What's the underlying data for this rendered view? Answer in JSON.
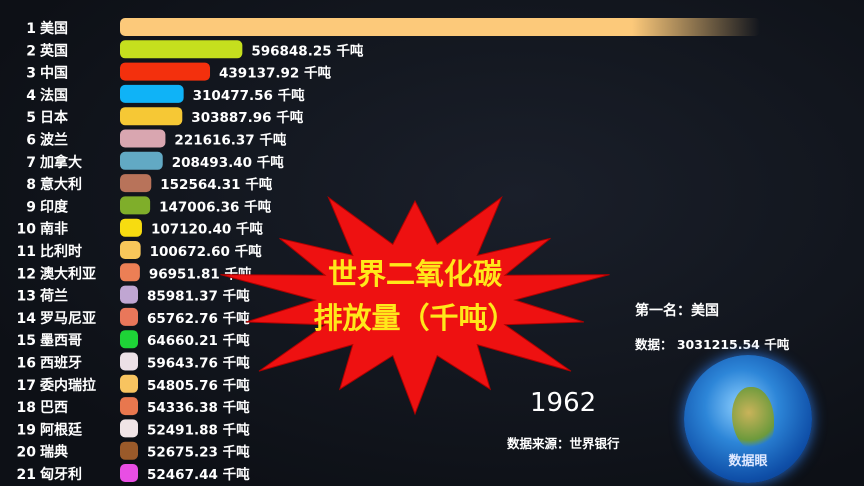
{
  "chart_data": {
    "type": "bar",
    "title": "世界二氧化碳排放量（千吨）",
    "title_lines": [
      "世界二氧化碳",
      "排放量（千吨）"
    ],
    "unit": "千吨",
    "orientation": "horizontal",
    "year": "1962",
    "categories": [
      "美国",
      "英国",
      "中国",
      "法国",
      "日本",
      "波兰",
      "加拿大",
      "意大利",
      "印度",
      "南非",
      "比利时",
      "澳大利亚",
      "荷兰",
      "罗马尼亚",
      "墨西哥",
      "西班牙",
      "委内瑞拉",
      "巴西",
      "阿根廷",
      "瑞典",
      "匈牙利"
    ],
    "ranks": [
      1,
      2,
      3,
      4,
      5,
      6,
      7,
      8,
      9,
      10,
      11,
      12,
      13,
      14,
      15,
      16,
      17,
      18,
      19,
      20,
      21
    ],
    "values": [
      3031215.54,
      596848.25,
      439137.92,
      310477.56,
      303887.96,
      221616.37,
      208493.4,
      152564.31,
      147006.36,
      107120.4,
      100672.6,
      96951.81,
      85981.37,
      65762.76,
      64660.21,
      59643.76,
      54805.76,
      54336.38,
      52491.88,
      52675.23,
      52467.44
    ],
    "value_labels": [
      "",
      "596848.25 千吨",
      "439137.92 千吨",
      "310477.56 千吨",
      "303887.96 千吨",
      "221616.37 千吨",
      "208493.40 千吨",
      "152564.31 千吨",
      "147006.36 千吨",
      "107120.40 千吨",
      "100672.60 千吨",
      "96951.81 千吨",
      "85981.37 千吨",
      "65762.76 千吨",
      "64660.21 千吨",
      "59643.76 千吨",
      "54805.76 千吨",
      "54336.38 千吨",
      "52491.88 千吨",
      "52675.23 千吨",
      "52467.44 千吨"
    ],
    "colors": [
      "#fcc97a",
      "#c5df1e",
      "#f3300d",
      "#0fb3f7",
      "#f6c835",
      "#d9a6b0",
      "#62a9c4",
      "#b8735a",
      "#7fae2a",
      "#f7dc10",
      "#f8c75a",
      "#ec7f55",
      "#c0a6d2",
      "#e9775a",
      "#1ed437",
      "#ece0e6",
      "#f8c460",
      "#e8774e",
      "#f0e4e6",
      "#9a5a2a",
      "#e84ee4"
    ]
  },
  "leader": {
    "label": "第一名：美国",
    "data": "数据：  3031215.54 千吨"
  },
  "source": "数据来源：世界银行",
  "logo_text": "数据眼"
}
